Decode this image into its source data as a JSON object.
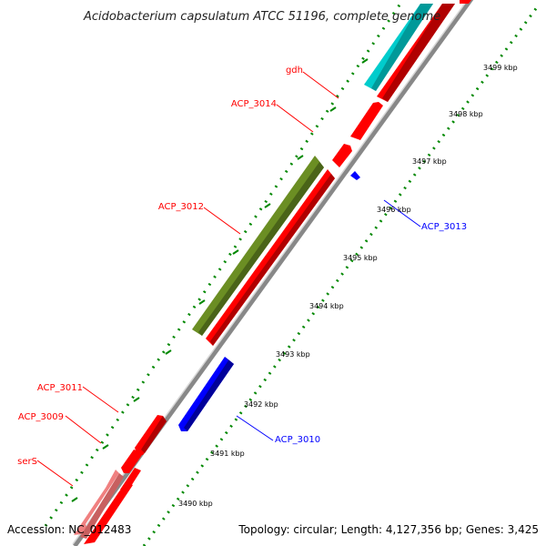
{
  "header": {
    "title": "Acidobacterium capsulatum ATCC 51196, complete genome"
  },
  "footer": {
    "accession": "Accession: NC_012483",
    "topology": "Topology: circular; Length: 4,127,356 bp; Genes: 3,425"
  },
  "colors": {
    "forward_gene": "#ff0000",
    "reverse_gene": "#0000ff",
    "trna": "#00cccc",
    "rrna_or_olive": "#6b8e23",
    "pseudo_light": "#f08080",
    "backbone": "#888888",
    "tick_green": "#008800"
  },
  "ticks": [
    {
      "label": "3490 kbp"
    },
    {
      "label": "3491 kbp"
    },
    {
      "label": "3492 kbp"
    },
    {
      "label": "3493 kbp"
    },
    {
      "label": "3494 kbp"
    },
    {
      "label": "3495 kbp"
    },
    {
      "label": "3496 kbp"
    },
    {
      "label": "3497 kbp"
    },
    {
      "label": "3498 kbp"
    },
    {
      "label": "3499 kbp"
    }
  ],
  "gene_labels": {
    "gdh": "gdh",
    "acp3014": "ACP_3014",
    "acp3012": "ACP_3012",
    "acp3013": "ACP_3013",
    "acp3011": "ACP_3011",
    "acp3009": "ACP_3009",
    "acp3010": "ACP_3010",
    "sers": "serS"
  }
}
